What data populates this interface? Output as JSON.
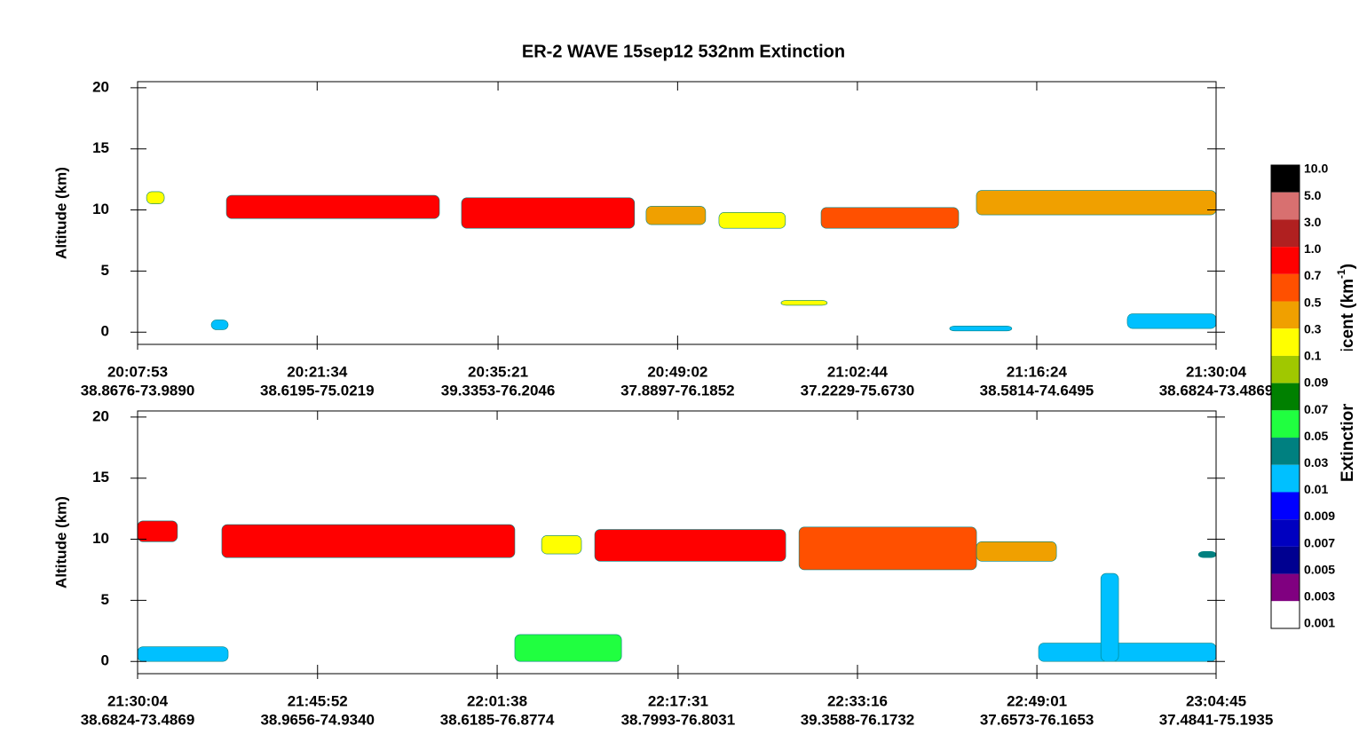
{
  "title": "ER-2  WAVE  15sep12  532nm Extinction",
  "chart_data": [
    {
      "type": "heatmap",
      "ylabel": "Altitude (km)",
      "xlim": [
        72473,
        77404
      ],
      "xticks": [
        {
          "value": 72473,
          "label": "20:07:53",
          "sublabel": "38.8676-73.9890"
        },
        {
          "value": 73294,
          "label": "20:21:34",
          "sublabel": "38.6195-75.0219"
        },
        {
          "value": 74121,
          "label": "20:35:21",
          "sublabel": "39.3353-76.2046"
        },
        {
          "value": 74942,
          "label": "20:49:02",
          "sublabel": "37.8897-76.1852"
        },
        {
          "value": 75764,
          "label": "21:02:44",
          "sublabel": "37.2229-75.6730"
        },
        {
          "value": 76584,
          "label": "21:16:24",
          "sublabel": "38.5814-74.6495"
        },
        {
          "value": 77404,
          "label": "21:30:04",
          "sublabel": "38.6824-73.4869"
        }
      ],
      "ylim": [
        -1,
        20.5
      ],
      "yticks": [
        0,
        5,
        10,
        15,
        20
      ],
      "layers": [
        {
          "x": [
            72514,
            72595
          ],
          "alt": [
            10.5,
            11.5
          ],
          "value": 0.1
        },
        {
          "x": [
            72879,
            73853
          ],
          "alt": [
            9.3,
            11.2
          ],
          "value": 0.7
        },
        {
          "x": [
            73954,
            74745
          ],
          "alt": [
            8.5,
            11
          ],
          "value": 0.7
        },
        {
          "x": [
            74798,
            75070
          ],
          "alt": [
            8.8,
            10.3
          ],
          "value": 0.3
        },
        {
          "x": [
            75131,
            75435
          ],
          "alt": [
            8.5,
            9.8
          ],
          "value": 0.1
        },
        {
          "x": [
            75598,
            76227
          ],
          "alt": [
            8.5,
            10.2
          ],
          "value": 0.5
        },
        {
          "x": [
            76308,
            77404
          ],
          "alt": [
            9.6,
            11.6
          ],
          "value": 0.3
        },
        {
          "x": [
            75415,
            75626
          ],
          "alt": [
            2.2,
            2.6
          ],
          "value": 0.1
        },
        {
          "x": [
            72810,
            72887
          ],
          "alt": [
            0.2,
            1.0
          ],
          "value": 0.01
        },
        {
          "x": [
            76186,
            76470
          ],
          "alt": [
            0.1,
            0.5
          ],
          "value": 0.01
        },
        {
          "x": [
            76998,
            77404
          ],
          "alt": [
            0.3,
            1.5
          ],
          "value": 0.01
        }
      ]
    },
    {
      "type": "heatmap",
      "ylabel": "Altitude (km)",
      "xlim": [
        77404,
        83085
      ],
      "xticks": [
        {
          "value": 77404,
          "label": "21:30:04",
          "sublabel": "38.6824-73.4869"
        },
        {
          "value": 78352,
          "label": "21:45:52",
          "sublabel": "38.9656-74.9340"
        },
        {
          "value": 79298,
          "label": "22:01:38",
          "sublabel": "38.6185-76.8774"
        },
        {
          "value": 80251,
          "label": "22:17:31",
          "sublabel": "38.7993-76.8031"
        },
        {
          "value": 81196,
          "label": "22:33:16",
          "sublabel": "39.3588-76.1732"
        },
        {
          "value": 82141,
          "label": "22:49:01",
          "sublabel": "37.6573-76.1653"
        },
        {
          "value": 83085,
          "label": "23:04:45",
          "sublabel": "37.4841-75.1935"
        }
      ],
      "ylim": [
        -1,
        20.5
      ],
      "yticks": [
        0,
        5,
        10,
        15,
        20
      ],
      "layers": [
        {
          "x": [
            77404,
            77614
          ],
          "alt": [
            9.8,
            11.5
          ],
          "value": 0.7
        },
        {
          "x": [
            77848,
            79391
          ],
          "alt": [
            8.5,
            11.2
          ],
          "value": 0.7
        },
        {
          "x": [
            79532,
            79742
          ],
          "alt": [
            8.8,
            10.3
          ],
          "value": 0.1
        },
        {
          "x": [
            79812,
            80818
          ],
          "alt": [
            8.2,
            10.8
          ],
          "value": 0.7
        },
        {
          "x": [
            80888,
            81823
          ],
          "alt": [
            7.5,
            11
          ],
          "value": 0.5
        },
        {
          "x": [
            81823,
            82244
          ],
          "alt": [
            8.2,
            9.8
          ],
          "value": 0.3
        },
        {
          "x": [
            82992,
            83085
          ],
          "alt": [
            8.5,
            9
          ],
          "value": 0.03
        },
        {
          "x": [
            77404,
            77881
          ],
          "alt": [
            0,
            1.2
          ],
          "value": 0.01
        },
        {
          "x": [
            79391,
            79953
          ],
          "alt": [
            0,
            2.2
          ],
          "value": 0.05
        },
        {
          "x": [
            82150,
            83085
          ],
          "alt": [
            0,
            1.5
          ],
          "value": 0.01
        },
        {
          "x": [
            82478,
            82571
          ],
          "alt": [
            0,
            7.2
          ],
          "value": 0.01
        }
      ]
    }
  ],
  "colorbar": {
    "label": "Extinction Coefficent (km",
    "label_sup": "-1",
    "label_end": ")",
    "ticks": [
      {
        "value": 10,
        "label": "10.0"
      },
      {
        "value": 5,
        "label": "5.0"
      },
      {
        "value": 3,
        "label": "3.0"
      },
      {
        "value": 1,
        "label": "1.0"
      },
      0.7,
      0.5,
      0.3,
      0.1,
      0.09,
      0.07,
      0.05,
      0.03,
      0.01,
      0.009,
      0.007,
      0.005,
      0.003,
      0.001
    ],
    "colors": [
      "#000000",
      "#d87070",
      "#b02020",
      "#ff0000",
      "#ff5000",
      "#f0a000",
      "#ffff00",
      "#a0c800",
      "#008000",
      "#20ff40",
      "#008080",
      "#00c0ff",
      "#0000ff",
      "#0000c0",
      "#000090",
      "#800080",
      "#ffffff"
    ]
  }
}
